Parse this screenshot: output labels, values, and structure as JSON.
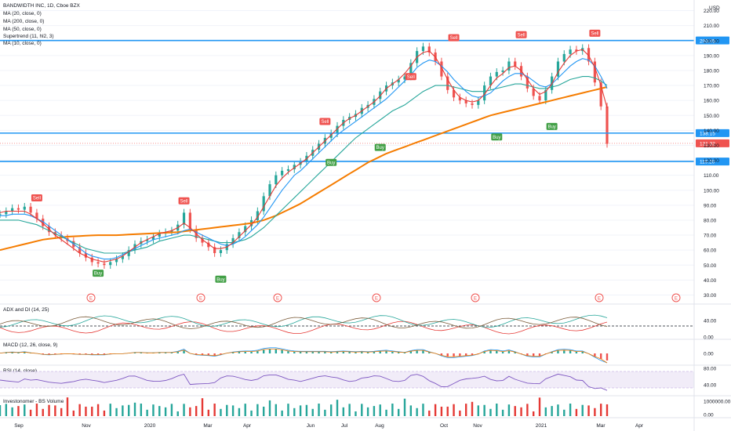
{
  "chart_data": {
    "type": "line",
    "symbol_title": "BANDWIDTH INC, 1D, Cboe BZX",
    "currency": "USD",
    "indicators": [
      "MA (20, close, 0)",
      "MA (200, close, 0)",
      "MA (50, close, 0)",
      "Supertrend (11, hl2, 3)",
      "MA (10, close, 0)"
    ],
    "y_ticks": [
      220,
      210,
      200,
      190,
      180,
      170,
      160,
      150,
      140,
      130,
      120,
      110,
      100,
      90,
      80,
      70,
      60,
      50,
      40,
      30
    ],
    "y_tick_labels": [
      "220.00",
      "210.00",
      "200.00",
      "190.00",
      "180.00",
      "170.00",
      "160.00",
      "150.00",
      "140.00",
      "130.00",
      "120.00",
      "110.00",
      "100.00",
      "90.00",
      "80.00",
      "70.00",
      "60.00",
      "50.00",
      "40.00",
      "30.00"
    ],
    "ylim": [
      25,
      225
    ],
    "x_ticks": [
      "Sep",
      "Nov",
      "2020",
      "Mar",
      "Apr",
      "Jun",
      "Jul",
      "Aug",
      "Oct",
      "Nov",
      "2021",
      "Mar",
      "Apr"
    ],
    "horizontal_levels": [
      {
        "value": 200.05,
        "label": "200.05",
        "color": "#2196f3"
      },
      {
        "value": 138.15,
        "label": "138.15",
        "color": "#2196f3"
      },
      {
        "value": 119.2,
        "label": "119.20",
        "color": "#2196f3"
      }
    ],
    "last_price": {
      "value": 131.32,
      "label": "131.32",
      "color": "#ef5350"
    },
    "price_series": {
      "name": "close",
      "values": [
        84,
        86,
        88,
        87,
        89,
        85,
        81,
        76,
        72,
        70,
        68,
        66,
        62,
        58,
        55,
        52,
        51,
        50,
        52,
        54,
        56,
        60,
        64,
        66,
        67,
        69,
        71,
        72,
        73,
        77,
        85,
        74,
        68,
        65,
        62,
        58,
        60,
        64,
        68,
        72,
        76,
        80,
        86,
        96,
        104,
        110,
        113,
        114,
        117,
        119,
        123,
        127,
        131,
        135,
        138,
        143,
        147,
        149,
        151,
        155,
        157,
        161,
        166,
        170,
        172,
        174,
        176,
        185,
        193,
        196,
        192,
        186,
        176,
        167,
        162,
        160,
        158,
        157,
        160,
        170,
        176,
        179,
        180,
        186,
        183,
        176,
        168,
        163,
        160,
        167,
        176,
        186,
        191,
        194,
        193,
        195,
        186,
        172,
        156,
        131
      ]
    },
    "ma_lines": [
      {
        "name": "MA 200",
        "color": "#f57c00",
        "values": [
          60,
          61,
          62,
          63,
          64,
          65,
          66,
          67,
          67.5,
          68,
          68.5,
          69,
          69.2,
          69.4,
          69.6,
          69.8,
          70,
          70,
          70,
          70,
          70.2,
          70.4,
          70.6,
          70.8,
          71,
          71.2,
          71.4,
          71.6,
          71.8,
          72,
          72.5,
          73,
          73.5,
          74,
          74.5,
          75,
          75.5,
          76,
          76.5,
          77,
          77.5,
          78,
          79,
          80,
          81.5,
          83,
          85,
          87,
          89,
          91,
          93.5,
          96,
          98.5,
          101,
          103.5,
          106,
          108.5,
          111,
          113.5,
          116,
          118.5,
          120.5,
          122.5,
          124.5,
          126,
          127.5,
          129,
          130.5,
          132,
          133.5,
          135,
          136.5,
          138,
          139.5,
          141,
          142.5,
          144,
          145.5,
          147,
          148.5,
          150,
          151,
          152,
          153,
          154,
          155,
          156,
          157,
          158,
          159,
          160,
          161,
          162,
          163,
          164,
          165,
          166,
          167,
          168,
          169
        ]
      },
      {
        "name": "MA 50",
        "color": "#26a69a",
        "values": [
          80,
          80,
          80,
          80,
          79,
          78,
          77,
          75,
          73,
          71,
          69,
          67,
          65,
          63,
          61,
          60,
          59,
          58,
          58,
          58,
          58,
          59,
          60,
          61,
          62,
          64,
          66,
          67,
          68,
          69,
          70,
          70,
          69,
          68,
          67,
          66,
          65,
          65,
          65,
          66,
          67,
          69,
          72,
          75,
          79,
          83,
          87,
          91,
          95,
          99,
          103,
          107,
          111,
          115,
          119,
          123,
          127,
          131,
          135,
          138,
          141,
          144,
          147,
          150,
          153,
          155,
          157,
          160,
          163,
          166,
          168,
          170,
          170,
          170,
          169,
          168,
          167,
          166,
          166,
          166,
          167,
          168,
          169,
          170,
          171,
          171,
          170,
          169,
          168,
          168,
          169,
          170,
          172,
          174,
          175,
          176,
          176,
          175,
          173,
          170
        ]
      },
      {
        "name": "MA 20",
        "color": "#2196f3",
        "values": [
          83,
          83,
          84,
          84,
          84,
          83,
          81,
          79,
          76,
          73,
          70,
          67,
          64,
          61,
          58,
          56,
          55,
          54,
          54,
          55,
          57,
          59,
          61,
          63,
          65,
          67,
          68,
          69,
          70,
          71,
          73,
          74,
          72,
          70,
          68,
          66,
          64,
          63,
          64,
          66,
          69,
          73,
          77,
          82,
          88,
          94,
          100,
          105,
          110,
          113,
          117,
          121,
          125,
          129,
          133,
          137,
          140,
          143,
          146,
          149,
          152,
          155,
          158,
          161,
          165,
          169,
          173,
          177,
          182,
          185,
          187,
          186,
          183,
          179,
          174,
          170,
          166,
          163,
          162,
          163,
          165,
          169,
          173,
          176,
          178,
          178,
          176,
          173,
          170,
          169,
          171,
          175,
          179,
          183,
          186,
          188,
          187,
          183,
          176,
          168
        ]
      },
      {
        "name": "MA 10",
        "color": "#e53935",
        "values": [
          85,
          86,
          86,
          86,
          86,
          84,
          81,
          78,
          74,
          70,
          67,
          64,
          61,
          58,
          56,
          54,
          53,
          52,
          53,
          54,
          56,
          59,
          62,
          65,
          67,
          69,
          71,
          72,
          73,
          75,
          78,
          75,
          71,
          67,
          64,
          61,
          61,
          62,
          65,
          69,
          73,
          77,
          82,
          89,
          96,
          103,
          108,
          112,
          115,
          118,
          121,
          125,
          129,
          133,
          137,
          141,
          145,
          148,
          150,
          153,
          156,
          159,
          163,
          168,
          171,
          174,
          178,
          183,
          189,
          192,
          193,
          189,
          182,
          174,
          167,
          162,
          160,
          159,
          160,
          164,
          170,
          175,
          178,
          182,
          183,
          180,
          174,
          168,
          164,
          166,
          171,
          179,
          185,
          190,
          193,
          194,
          190,
          182,
          170,
          155
        ]
      }
    ],
    "supertrend_segments": [
      {
        "type": "sell",
        "label": "Sell",
        "x_index": 6,
        "value": 91
      },
      {
        "type": "buy",
        "label": "Buy",
        "x_index": 16,
        "value": 48
      },
      {
        "type": "sell",
        "label": "Sell",
        "x_index": 30,
        "value": 89
      },
      {
        "type": "buy",
        "label": "Buy",
        "x_index": 36,
        "value": 44
      },
      {
        "type": "sell",
        "label": "Sell",
        "x_index": 53,
        "value": 142
      },
      {
        "type": "buy",
        "label": "Buy",
        "x_index": 54,
        "value": 122
      },
      {
        "type": "buy",
        "label": "Buy",
        "x_index": 62,
        "value": 132
      },
      {
        "type": "sell",
        "label": "Sell",
        "x_index": 67,
        "value": 172
      },
      {
        "type": "sell",
        "label": "Sell",
        "x_index": 74,
        "value": 198
      },
      {
        "type": "buy",
        "label": "Buy",
        "x_index": 81,
        "value": 139
      },
      {
        "type": "sell",
        "label": "Sell",
        "x_index": 85,
        "value": 200
      },
      {
        "type": "buy",
        "label": "Buy",
        "x_index": 90,
        "value": 146
      },
      {
        "type": "sell",
        "label": "Sell",
        "x_index": 97,
        "value": 201
      }
    ],
    "earnings_markers": [
      13,
      31,
      42,
      58,
      74,
      95,
      108
    ],
    "panes": [
      {
        "name": "ADX and DI (14, 25)",
        "ticks": [
          "40.00",
          "0.00"
        ],
        "colors": [
          "#e53935",
          "#26a69a",
          "#7b5c3a"
        ]
      },
      {
        "name": "MACD (12, 26, close, 9)",
        "ticks": [
          "0.00"
        ],
        "colors": [
          "#2196f3",
          "#f57c00"
        ]
      },
      {
        "name": "RSI (14, close)",
        "ticks": [
          "80.00",
          "40.00"
        ],
        "colors": [
          "#7e57c2"
        ]
      },
      {
        "name": "Investonomer - BS Volume",
        "ticks": [
          "1000000.00",
          "0.00"
        ],
        "colors": [
          "#e53935",
          "#26a69a"
        ]
      }
    ]
  }
}
